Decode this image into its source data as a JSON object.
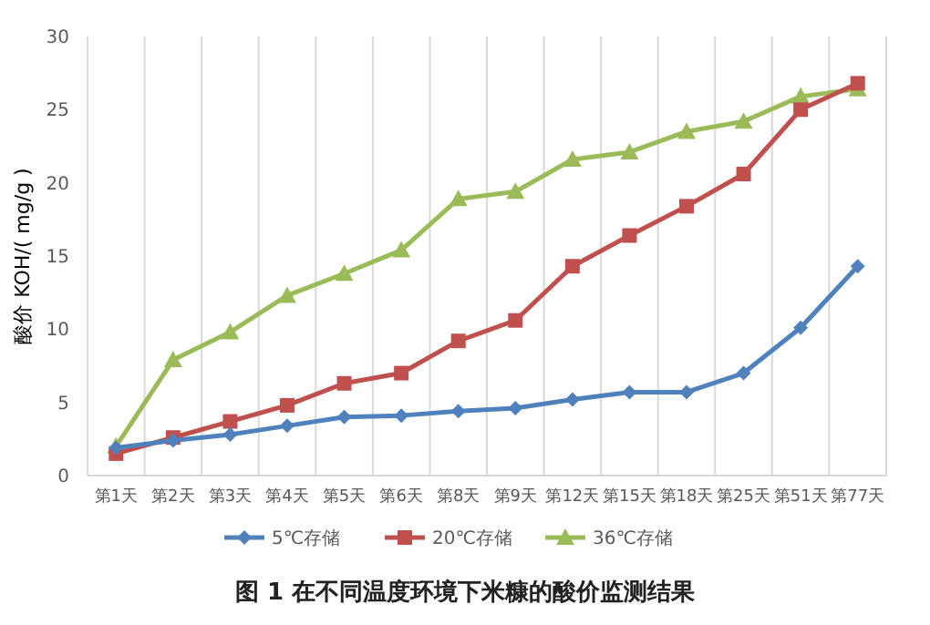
{
  "chart_data": {
    "type": "line",
    "title": "图 1  在不同温度环境下米糠的酸价监测结果",
    "ylabel": "酸价 KOH/( mg/g )",
    "categories": [
      "第1天",
      "第2天",
      "第3天",
      "第4天",
      "第5天",
      "第6天",
      "第8天",
      "第9天",
      "第12天",
      "第15天",
      "第18天",
      "第25天",
      "第51天",
      "第77天"
    ],
    "series": [
      {
        "name": "5℃存储",
        "color": "#4f81bd",
        "marker": "diamond",
        "values": [
          1.9,
          2.4,
          2.8,
          3.4,
          4.0,
          4.1,
          4.4,
          4.6,
          5.2,
          5.7,
          5.7,
          7.0,
          10.1,
          14.3
        ]
      },
      {
        "name": "20℃存储",
        "color": "#c0504d",
        "marker": "square",
        "values": [
          1.5,
          2.6,
          3.7,
          4.8,
          6.3,
          7.0,
          9.2,
          10.6,
          14.3,
          16.4,
          18.4,
          20.6,
          25.0,
          26.8
        ]
      },
      {
        "name": "36℃存储",
        "color": "#9bbb59",
        "marker": "triangle",
        "values": [
          2.0,
          7.9,
          9.8,
          12.3,
          13.8,
          15.4,
          18.9,
          19.4,
          21.6,
          22.1,
          23.5,
          24.2,
          25.9,
          26.4
        ]
      }
    ],
    "ylim": [
      0,
      30
    ],
    "yticks": [
      0,
      5,
      10,
      15,
      20,
      25,
      30
    ],
    "grid": "x",
    "legend": "bottom",
    "line_style": "solid"
  }
}
